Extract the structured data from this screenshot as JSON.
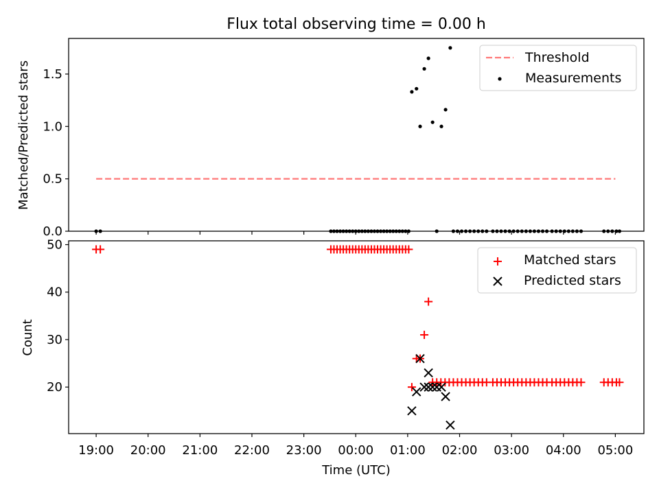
{
  "chart_data": [
    {
      "type": "scatter",
      "title": "Flux total observing time = 0.00 h",
      "xlabel": "",
      "ylabel": "Matched/Predicted stars",
      "xlim": [
        18.47,
        29.55
      ],
      "ylim": [
        0,
        1.84
      ],
      "yticks": [
        0,
        0.5,
        1,
        1.5
      ],
      "ytick_labels": [
        "0.0",
        "0.5",
        "1.0",
        "1.5"
      ],
      "xticks": [
        19,
        20,
        21,
        22,
        23,
        24,
        25,
        26,
        27,
        28,
        29
      ],
      "legend": {
        "position": "upper-right",
        "entries": [
          "Threshold",
          "Measurements"
        ]
      },
      "threshold": {
        "name": "Threshold",
        "value": 0.5,
        "x_range": [
          19.0,
          29.0
        ],
        "color": "#ff7777"
      },
      "measurements": {
        "name": "Measurements",
        "color": "#000000",
        "zero_x": [
          19.0,
          19.08,
          23.52,
          23.58,
          23.64,
          23.7,
          23.76,
          23.82,
          23.88,
          23.94,
          24.0,
          24.06,
          24.12,
          24.18,
          24.24,
          24.3,
          24.36,
          24.42,
          24.48,
          24.54,
          24.6,
          24.66,
          24.72,
          24.78,
          24.84,
          24.9,
          24.96,
          25.02,
          25.56,
          25.88,
          25.96,
          26.04,
          26.12,
          26.2,
          26.28,
          26.36,
          26.44,
          26.52,
          26.64,
          26.72,
          26.8,
          26.88,
          26.96,
          27.04,
          27.12,
          27.2,
          27.28,
          27.36,
          27.44,
          27.52,
          27.6,
          27.68,
          27.78,
          27.86,
          27.94,
          28.02,
          28.1,
          28.18,
          28.26,
          28.34,
          28.78,
          28.86,
          28.94,
          29.02,
          29.08
        ],
        "points": [
          {
            "x": 25.08,
            "y": 1.33
          },
          {
            "x": 25.17,
            "y": 1.36
          },
          {
            "x": 25.24,
            "y": 1.0
          },
          {
            "x": 25.32,
            "y": 1.55
          },
          {
            "x": 25.4,
            "y": 1.65
          },
          {
            "x": 25.48,
            "y": 1.04
          },
          {
            "x": 25.65,
            "y": 1.0
          },
          {
            "x": 25.73,
            "y": 1.16
          },
          {
            "x": 25.82,
            "y": 1.75
          }
        ]
      }
    },
    {
      "type": "scatter",
      "title": "",
      "xlabel": "Time (UTC)",
      "ylabel": "Count",
      "xlim": [
        18.47,
        29.55
      ],
      "ylim": [
        10.2,
        50.8
      ],
      "yticks": [
        20,
        30,
        40,
        50
      ],
      "ytick_labels": [
        "20",
        "30",
        "40",
        "50"
      ],
      "xticks": [
        19,
        20,
        21,
        22,
        23,
        24,
        25,
        26,
        27,
        28,
        29
      ],
      "xtick_labels": [
        "19:00",
        "20:00",
        "21:00",
        "22:00",
        "23:00",
        "00:00",
        "01:00",
        "02:00",
        "03:00",
        "04:00",
        "05:00"
      ],
      "legend": {
        "position": "upper-right",
        "entries": [
          "Matched stars",
          "Predicted stars"
        ]
      },
      "series": [
        {
          "name": "Matched stars",
          "marker": "+",
          "color": "#ff0000",
          "runs": [
            {
              "x": [
                19.0,
                19.08
              ],
              "y": 49
            },
            {
              "x": [
                23.52,
                23.58,
                23.64,
                23.7,
                23.76,
                23.82,
                23.88,
                23.94,
                24.0,
                24.06,
                24.12,
                24.18,
                24.24,
                24.3,
                24.36,
                24.42,
                24.48,
                24.54,
                24.6,
                24.66,
                24.72,
                24.78,
                24.84,
                24.9,
                24.96,
                25.02
              ],
              "y": 49
            },
            {
              "x": [
                25.56,
                25.64,
                25.72,
                25.8,
                25.88,
                25.96,
                26.04,
                26.12,
                26.2,
                26.28,
                26.36,
                26.44,
                26.52,
                26.64,
                26.72,
                26.8,
                26.88,
                26.96,
                27.04,
                27.12,
                27.2,
                27.28,
                27.36,
                27.44,
                27.52,
                27.6,
                27.68,
                27.78,
                27.86,
                27.94,
                28.02,
                28.1,
                28.18,
                28.26,
                28.34,
                28.78,
                28.86,
                28.94,
                29.02,
                29.08
              ],
              "y": 21
            }
          ],
          "points": [
            {
              "x": 25.08,
              "y": 20
            },
            {
              "x": 25.17,
              "y": 26
            },
            {
              "x": 25.24,
              "y": 26
            },
            {
              "x": 25.32,
              "y": 31
            },
            {
              "x": 25.4,
              "y": 38
            },
            {
              "x": 25.48,
              "y": 21
            }
          ]
        },
        {
          "name": "Predicted stars",
          "marker": "x",
          "color": "#000000",
          "points": [
            {
              "x": 25.08,
              "y": 15
            },
            {
              "x": 25.17,
              "y": 19
            },
            {
              "x": 25.24,
              "y": 26
            },
            {
              "x": 25.32,
              "y": 20
            },
            {
              "x": 25.4,
              "y": 23
            },
            {
              "x": 25.4,
              "y": 20
            },
            {
              "x": 25.48,
              "y": 20
            },
            {
              "x": 25.56,
              "y": 20
            },
            {
              "x": 25.65,
              "y": 20
            },
            {
              "x": 25.73,
              "y": 18
            },
            {
              "x": 25.82,
              "y": 12
            }
          ]
        }
      ]
    }
  ]
}
